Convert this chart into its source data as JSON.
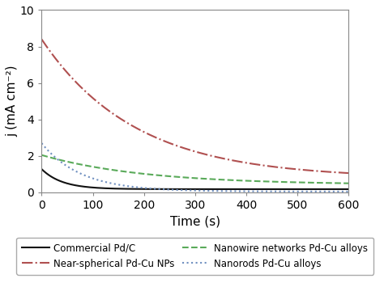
{
  "xlabel": "Time (s)",
  "ylabel": "j (mA cm⁻²)",
  "xlim": [
    0,
    600
  ],
  "ylim": [
    0,
    10
  ],
  "yticks": [
    0,
    2,
    4,
    6,
    8,
    10
  ],
  "xticks": [
    0,
    100,
    200,
    300,
    400,
    500,
    600
  ],
  "background_color": "#ffffff",
  "curves": [
    {
      "label": "Commercial Pd/C",
      "color": "#111111",
      "linestyle": "solid",
      "linewidth": 1.5,
      "start_y": 1.28,
      "plateau_y": 0.18,
      "decay_rate": 0.025
    },
    {
      "label": "Nanowire networks Pd-Cu alloys",
      "color": "#5aaa5a",
      "linestyle": "dashed",
      "linewidth": 1.5,
      "start_y": 2.05,
      "plateau_y": 0.42,
      "decay_rate": 0.005
    },
    {
      "label": "Near-spherical Pd-Cu NPs",
      "color": "#b05050",
      "linestyle": "dashdot",
      "linewidth": 1.5,
      "start_y": 8.4,
      "plateau_y": 0.78,
      "decay_rate": 0.0055
    },
    {
      "label": "Nanorods Pd-Cu alloys",
      "color": "#7090c0",
      "linestyle": "dotted",
      "linewidth": 1.5,
      "start_y": 2.7,
      "plateau_y": 0.05,
      "decay_rate": 0.013
    }
  ],
  "legend_fontsize": 8.5,
  "tick_fontsize": 10,
  "label_fontsize": 11
}
